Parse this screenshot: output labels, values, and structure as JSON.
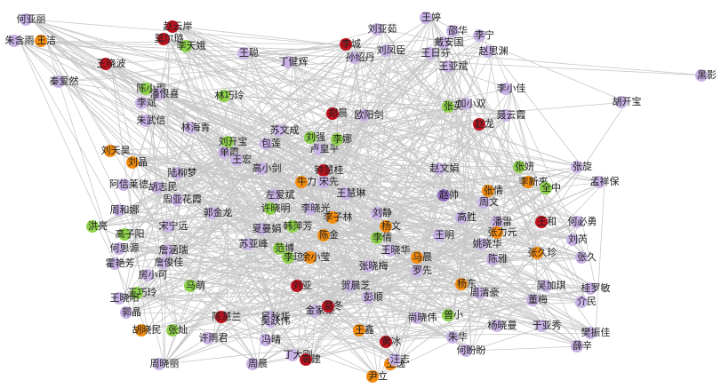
{
  "nodes": [
    {
      "label": "何亚丽",
      "color": "#c9b3e6"
    },
    {
      "label": "朱含雨",
      "color": "#c9b3e6"
    },
    {
      "label": "王洁",
      "color": "#f28c0f"
    },
    {
      "label": "赵云岸",
      "color": "#c0111e"
    },
    {
      "label": "莫尔璐",
      "color": "#c0111e"
    },
    {
      "label": "李天娥",
      "color": "#8ed14b"
    },
    {
      "label": "王晓波",
      "color": "#c0111e"
    },
    {
      "label": "秦爱然",
      "color": "#c9b3e6"
    },
    {
      "label": "陈小雨",
      "color": "#8ed14b"
    },
    {
      "label": "潘恨喜",
      "color": "#c9b3e6"
    },
    {
      "label": "李斌",
      "color": "#c9b3e6"
    },
    {
      "label": "林巧玲",
      "color": "#8ed14b"
    },
    {
      "label": "朱武信",
      "color": "#c9b3e6"
    },
    {
      "label": "林海青",
      "color": "#c9b3e6"
    },
    {
      "label": "刘天昊",
      "color": "#f28c0f"
    },
    {
      "label": "刘晶",
      "color": "#f28c0f"
    },
    {
      "label": "陆柳梦",
      "color": "#c9b3e6"
    },
    {
      "label": "阿信莱德",
      "color": "#c9b3e6"
    },
    {
      "label": "胡志民",
      "color": "#c9b3e6"
    },
    {
      "label": "周亚花霞",
      "color": "#c9b3e6"
    },
    {
      "label": "郭金龙",
      "color": "#c9b3e6"
    },
    {
      "label": "周和娜",
      "color": "#c9b3e6"
    },
    {
      "label": "宋宁远",
      "color": "#c9b3e6"
    },
    {
      "label": "洪亮",
      "color": "#8ed14b"
    },
    {
      "label": "高子阳",
      "color": "#8ed14b"
    },
    {
      "label": "何思源",
      "color": "#c9b3e6"
    },
    {
      "label": "霍艳芳",
      "color": "#c9b3e6"
    },
    {
      "label": "詹涵瑞",
      "color": "#c9b3e6"
    },
    {
      "label": "詹俊佳",
      "color": "#c9b3e6"
    },
    {
      "label": "房小可",
      "color": "#c9b3e6"
    },
    {
      "label": "马萌",
      "color": "#8ed14b"
    },
    {
      "label": "王巧玲",
      "color": "#8ed14b"
    },
    {
      "label": "王晓阳",
      "color": "#c9b3e6"
    },
    {
      "label": "郭晶",
      "color": "#c9b3e6"
    },
    {
      "label": "胡晓民",
      "color": "#f28c0f"
    },
    {
      "label": "张灿",
      "color": "#8ed14b"
    },
    {
      "label": "周晓丽",
      "color": "#c9b3e6"
    },
    {
      "label": "许雨君",
      "color": "#c9b3e6"
    },
    {
      "label": "陈慧兰",
      "color": "#c0111e"
    },
    {
      "label": "吴秋华",
      "color": "#c9b3e6"
    },
    {
      "label": "冯晴",
      "color": "#c9b3e6"
    },
    {
      "label": "周晨",
      "color": "#c9b3e6"
    },
    {
      "label": "刘开宝",
      "color": "#8ed14b"
    },
    {
      "label": "单霞",
      "color": "#c9b3e6"
    },
    {
      "label": "包莲",
      "color": "#c9b3e6"
    },
    {
      "label": "许晓明",
      "color": "#8ed14b"
    },
    {
      "label": "高小剑",
      "color": "#c9b3e6"
    },
    {
      "label": "王宏",
      "color": "#c9b3e6"
    },
    {
      "label": "左爱斌",
      "color": "#c9b3e6"
    },
    {
      "label": "李晓光",
      "color": "#c9b3e6"
    },
    {
      "label": "牛力",
      "color": "#f28c0f"
    },
    {
      "label": "卢皇平",
      "color": "#c9b3e6"
    },
    {
      "label": "刘强",
      "color": "#8ed14b"
    },
    {
      "label": "李娜",
      "color": "#8ed14b"
    },
    {
      "label": "钟慧桂",
      "color": "#c0111e"
    },
    {
      "label": "宋先",
      "color": "#c9b3e6"
    },
    {
      "label": "王慧琳",
      "color": "#c9b3e6"
    },
    {
      "label": "韩萍芳",
      "color": "#8ed14b"
    },
    {
      "label": "李子林",
      "color": "#f28c0f"
    },
    {
      "label": "夏曼娟",
      "color": "#c9b3e6"
    },
    {
      "label": "苏亚峰",
      "color": "#c9b3e6"
    },
    {
      "label": "范博",
      "color": "#8ed14b"
    },
    {
      "label": "陈金",
      "color": "#f28c0f"
    },
    {
      "label": "李琼",
      "color": "#8ed14b"
    },
    {
      "label": "余小莹",
      "color": "#f28c0f"
    },
    {
      "label": "张晓梅",
      "color": "#c9b3e6"
    },
    {
      "label": "刘亚",
      "color": "#c0111e"
    },
    {
      "label": "贺晨芝",
      "color": "#c9b3e6"
    },
    {
      "label": "彭顺",
      "color": "#c9b3e6"
    },
    {
      "label": "金家豪",
      "color": "#c9b3e6"
    },
    {
      "label": "葛冬",
      "color": "#c0111e"
    },
    {
      "label": "吴跃伟",
      "color": "#c9b3e6"
    },
    {
      "label": "王鑫",
      "color": "#f28c0f"
    },
    {
      "label": "黄冰",
      "color": "#c0111e"
    },
    {
      "label": "丁大刚",
      "color": "#c9b3e6"
    },
    {
      "label": "王逸",
      "color": "#f28c0f"
    },
    {
      "label": "尹立",
      "color": "#f28c0f"
    },
    {
      "label": "高建",
      "color": "#c0111e"
    },
    {
      "label": "刘静",
      "color": "#c9b3e6"
    },
    {
      "label": "杨文",
      "color": "#f28c0f"
    },
    {
      "label": "李倩",
      "color": "#8ed14b"
    },
    {
      "label": "王晓华",
      "color": "#c9b3e6"
    },
    {
      "label": "马晨",
      "color": "#f28c0f"
    },
    {
      "label": "罗先",
      "color": "#c9b3e6"
    },
    {
      "label": "赵文娟",
      "color": "#c9b3e6"
    },
    {
      "label": "赵帅",
      "color": "#8e6bbf"
    },
    {
      "label": "高胜",
      "color": "#c9b3e6"
    },
    {
      "label": "王明",
      "color": "#c9b3e6"
    },
    {
      "label": "杨东",
      "color": "#f28c0f"
    },
    {
      "label": "尚晓伟",
      "color": "#c9b3e6"
    },
    {
      "label": "曾小",
      "color": "#8ed14b"
    },
    {
      "label": "朱华",
      "color": "#c9b3e6"
    },
    {
      "label": "何盼盼",
      "color": "#c9b3e6"
    },
    {
      "label": "汪志",
      "color": "#c9b3e6"
    },
    {
      "label": "周清豪",
      "color": "#c9b3e6"
    },
    {
      "label": "欧阳剑",
      "color": "#c9b3e6"
    },
    {
      "label": "郑晨",
      "color": "#c0111e"
    },
    {
      "label": "苏文成",
      "color": "#c9b3e6"
    },
    {
      "label": "刘亚茹",
      "color": "#c9b3e6"
    },
    {
      "label": "李城",
      "color": "#c0111e"
    },
    {
      "label": "丁健辉",
      "color": "#c9b3e6"
    },
    {
      "label": "王聪",
      "color": "#c9b3e6"
    },
    {
      "label": "孙绍丹",
      "color": "#c9b3e6"
    },
    {
      "label": "刘凤臣",
      "color": "#c9b3e6"
    },
    {
      "label": "王日芬",
      "color": "#c9b3e6"
    },
    {
      "label": "王亚斌",
      "color": "#c9b3e6"
    },
    {
      "label": "李宁",
      "color": "#c9b3e6"
    },
    {
      "label": "赵思渊",
      "color": "#c9b3e6"
    },
    {
      "label": "邵华",
      "color": "#c9b3e6"
    },
    {
      "label": "戴安国",
      "color": "#c9b3e6"
    },
    {
      "label": "王婷",
      "color": "#c9b3e6"
    },
    {
      "label": "张英",
      "color": "#8ed14b"
    },
    {
      "label": "加小双",
      "color": "#c9b3e6"
    },
    {
      "label": "赵龙",
      "color": "#c0111e"
    },
    {
      "label": "聂云霞",
      "color": "#c9b3e6"
    },
    {
      "label": "李小佳",
      "color": "#c9b3e6"
    },
    {
      "label": "胡开宝",
      "color": "#c9b3e6"
    },
    {
      "label": "黑影",
      "color": "#c9b3e6"
    },
    {
      "label": "张妍",
      "color": "#8ed14b"
    },
    {
      "label": "李新来",
      "color": "#f28c0f"
    },
    {
      "label": "张旋",
      "color": "#c9b3e6"
    },
    {
      "label": "孟祥保",
      "color": "#c9b3e6"
    },
    {
      "label": "全中",
      "color": "#8ed14b"
    },
    {
      "label": "张倩",
      "color": "#f28c0f"
    },
    {
      "label": "周文",
      "color": "#c9b3e6"
    },
    {
      "label": "潘雷",
      "color": "#c9b3e6"
    },
    {
      "label": "王和",
      "color": "#c0111e"
    },
    {
      "label": "何必勇",
      "color": "#c9b3e6"
    },
    {
      "label": "刘芮",
      "color": "#c9b3e6"
    },
    {
      "label": "张力元",
      "color": "#f28c0f"
    },
    {
      "label": "姚晓华",
      "color": "#c9b3e6"
    },
    {
      "label": "张久",
      "color": "#c9b3e6"
    },
    {
      "label": "陈雅",
      "color": "#c9b3e6"
    },
    {
      "label": "张久珍",
      "color": "#f28c0f"
    },
    {
      "label": "吴加琪",
      "color": "#c9b3e6"
    },
    {
      "label": "桂罗敏",
      "color": "#c9b3e6"
    },
    {
      "label": "董梅",
      "color": "#c9b3e6"
    },
    {
      "label": "介民",
      "color": "#c9b3e6"
    },
    {
      "label": "杨晓曼",
      "color": "#c9b3e6"
    },
    {
      "label": "于亚秀",
      "color": "#c9b3e6"
    },
    {
      "label": "樊振佳",
      "color": "#c9b3e6"
    },
    {
      "label": "薛辛",
      "color": "#c9b3e6"
    }
  ]
}
